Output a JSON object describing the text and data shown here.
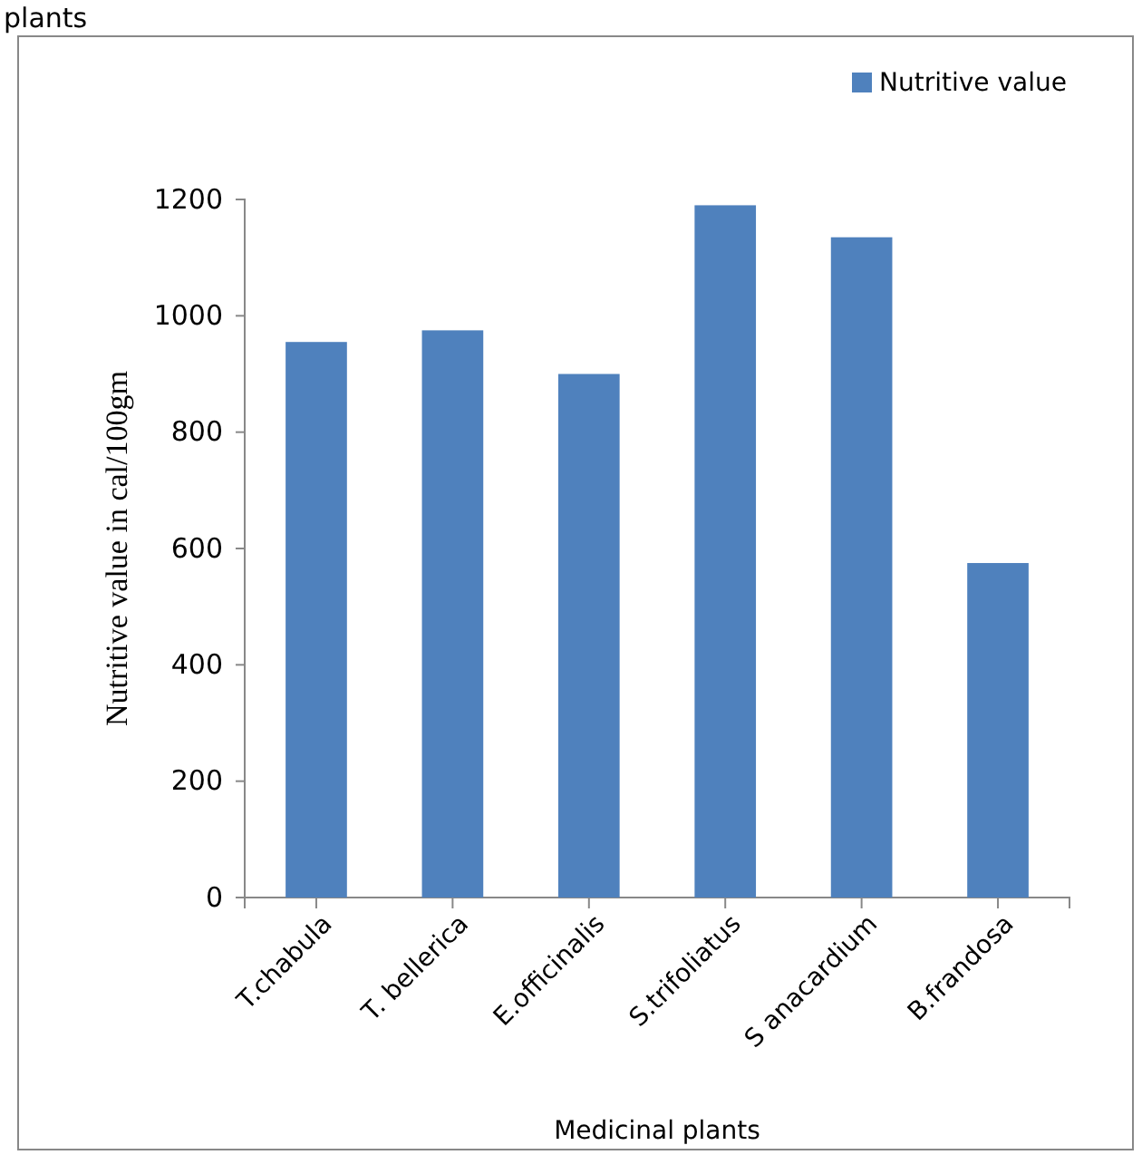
{
  "chart_data": {
    "type": "bar",
    "title": "plants",
    "xlabel": "Medicinal plants",
    "ylabel": "Nutritive value in cal/100gm",
    "categories": [
      "T.chabula",
      "T. bellerica",
      "E.officinalis",
      "S.trifoliatus",
      "S anacardium",
      "B.frandosa"
    ],
    "series": [
      {
        "name": "Nutritive value",
        "color": "#4f81bd",
        "values": [
          955,
          975,
          900,
          1190,
          1135,
          575
        ]
      }
    ],
    "ylim": [
      0,
      1200
    ],
    "yticks": [
      0,
      200,
      400,
      600,
      800,
      1000,
      1200
    ],
    "grid": false,
    "legend": "top right"
  }
}
